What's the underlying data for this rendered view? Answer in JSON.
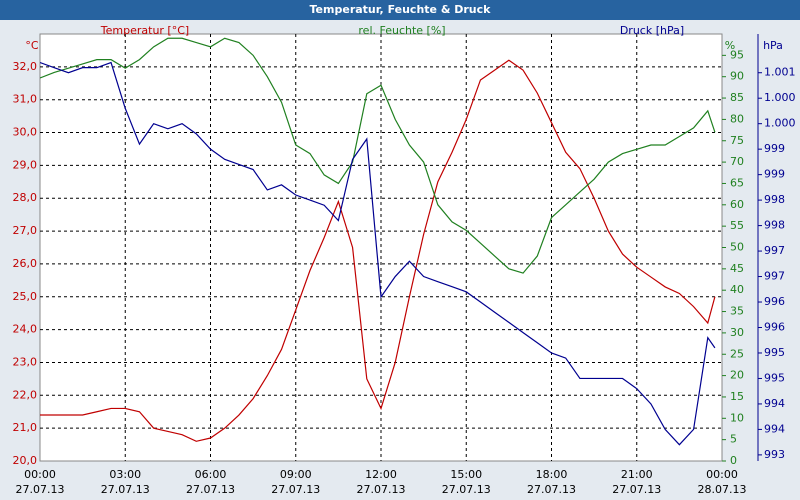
{
  "chart_data": {
    "type": "line",
    "title": "Temperatur, Feuchte & Druck",
    "y_label": "Temperatur [°C]",
    "y2_label": "rel. Feuchte [%]",
    "y3_label": "Druck [hPa]",
    "y_unit": "°C",
    "y2_unit": "%",
    "y3_unit": "hPa",
    "grid": true,
    "x": [
      0,
      0.5,
      1,
      1.5,
      2,
      2.5,
      3,
      3.5,
      4,
      4.5,
      5,
      5.5,
      6,
      6.5,
      7,
      7.5,
      8,
      8.5,
      9,
      9.5,
      10,
      10.5,
      11,
      11.5,
      12,
      12.5,
      13,
      13.5,
      14,
      14.5,
      15,
      15.5,
      16,
      16.5,
      17,
      17.5,
      18,
      18.5,
      19,
      19.5,
      20,
      20.5,
      21,
      21.5,
      22,
      22.5,
      23,
      23.5,
      23.75
    ],
    "xlim": [
      0,
      24
    ],
    "xticks": [
      {
        "value": 0,
        "label": "00:00",
        "date": "27.07.13"
      },
      {
        "value": 3,
        "label": "03:00",
        "date": "27.07.13"
      },
      {
        "value": 6,
        "label": "06:00",
        "date": "27.07.13"
      },
      {
        "value": 9,
        "label": "09:00",
        "date": "27.07.13"
      },
      {
        "value": 12,
        "label": "12:00",
        "date": "27.07.13"
      },
      {
        "value": 15,
        "label": "15:00",
        "date": "27.07.13"
      },
      {
        "value": 18,
        "label": "18:00",
        "date": "27.07.13"
      },
      {
        "value": 21,
        "label": "21:00",
        "date": "27.07.13"
      },
      {
        "value": 24,
        "label": "00:00",
        "date": "28.07.13"
      }
    ],
    "ylim": [
      20,
      33
    ],
    "yticks": [
      {
        "value": 20,
        "label": "20,0"
      },
      {
        "value": 21,
        "label": "21,0"
      },
      {
        "value": 22,
        "label": "22,0"
      },
      {
        "value": 23,
        "label": "23,0"
      },
      {
        "value": 24,
        "label": "24,0"
      },
      {
        "value": 25,
        "label": "25,0"
      },
      {
        "value": 26,
        "label": "26,0"
      },
      {
        "value": 27,
        "label": "27,0"
      },
      {
        "value": 28,
        "label": "28,0"
      },
      {
        "value": 29,
        "label": "29,0"
      },
      {
        "value": 30,
        "label": "30,0"
      },
      {
        "value": 31,
        "label": "31,0"
      },
      {
        "value": 32,
        "label": "32,0"
      }
    ],
    "y2lim": [
      0,
      100
    ],
    "y2ticks": [
      0,
      5,
      10,
      15,
      20,
      25,
      30,
      35,
      40,
      45,
      50,
      55,
      60,
      65,
      70,
      75,
      80,
      85,
      90,
      95
    ],
    "y3lim": [
      993.38,
      1001.76
    ],
    "y3ticks": [
      {
        "value": 993.5,
        "label": "993"
      },
      {
        "value": 994,
        "label": "994"
      },
      {
        "value": 994.5,
        "label": "994"
      },
      {
        "value": 995,
        "label": "995"
      },
      {
        "value": 995.5,
        "label": "995"
      },
      {
        "value": 996,
        "label": "996"
      },
      {
        "value": 996.5,
        "label": "996"
      },
      {
        "value": 997,
        "label": "997"
      },
      {
        "value": 997.5,
        "label": "997"
      },
      {
        "value": 998,
        "label": "998"
      },
      {
        "value": 998.5,
        "label": "998"
      },
      {
        "value": 999,
        "label": "999"
      },
      {
        "value": 999.5,
        "label": "999"
      },
      {
        "value": 1000,
        "label": "1.000"
      },
      {
        "value": 1000.5,
        "label": "1.000"
      },
      {
        "value": 1001,
        "label": "1.001"
      }
    ],
    "series": [
      {
        "name": "Temperatur",
        "color": "#c00000",
        "axis": "y",
        "values": [
          21.4,
          21.4,
          21.4,
          21.4,
          21.5,
          21.6,
          21.6,
          21.5,
          21.0,
          20.9,
          20.8,
          20.6,
          20.7,
          21.0,
          21.4,
          21.9,
          22.6,
          23.4,
          24.6,
          25.8,
          26.8,
          27.9,
          26.5,
          22.5,
          21.6,
          23.0,
          25.0,
          26.9,
          28.5,
          29.4,
          30.4,
          31.6,
          31.9,
          32.2,
          31.9,
          31.2,
          30.3,
          29.4,
          28.9,
          28.0,
          27.0,
          26.3,
          25.9,
          25.6,
          25.3,
          25.1,
          24.7,
          24.2,
          25.0
        ]
      },
      {
        "name": "rel. Feuchte",
        "color": "#208020",
        "axis": "y2",
        "values": [
          89.7,
          91,
          92,
          93,
          94,
          94,
          92,
          94,
          97,
          99,
          99,
          98,
          97,
          99,
          98,
          95,
          90,
          84,
          74,
          72,
          67,
          65,
          70,
          86,
          88,
          80,
          74,
          70,
          60,
          56,
          54,
          51,
          48,
          45,
          44,
          48,
          57,
          60,
          63,
          66,
          70,
          72,
          73,
          74,
          74,
          76,
          78,
          82,
          77
        ]
      },
      {
        "name": "Druck",
        "color": "#000090",
        "axis": "y3",
        "values": [
          1001.2,
          1001.1,
          1001.0,
          1001.1,
          1001.1,
          1001.2,
          1000.3,
          999.6,
          1000.0,
          999.9,
          1000.0,
          999.8,
          999.5,
          999.3,
          999.2,
          999.1,
          998.7,
          998.8,
          998.6,
          998.5,
          998.4,
          998.1,
          999.3,
          999.7,
          996.6,
          997.0,
          997.3,
          997.0,
          996.9,
          996.8,
          996.7,
          996.5,
          996.3,
          996.1,
          995.9,
          995.7,
          995.5,
          995.4,
          995.0,
          995.0,
          995.0,
          995.0,
          994.8,
          994.5,
          994.0,
          993.7,
          994.0,
          995.8,
          995.6
        ]
      }
    ]
  }
}
